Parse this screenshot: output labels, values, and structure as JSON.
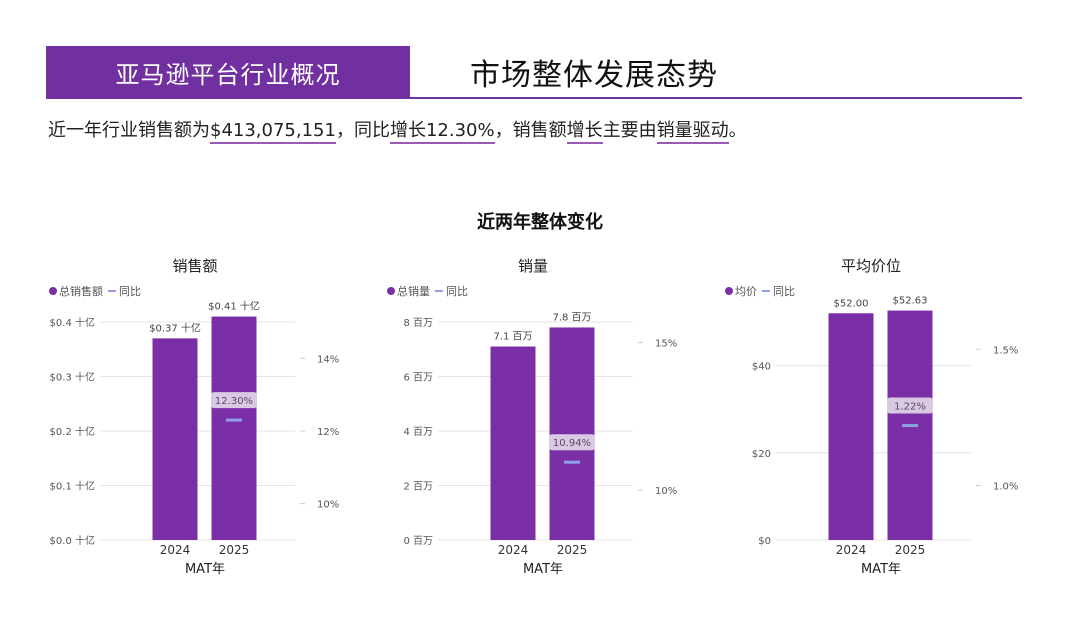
{
  "header": {
    "section_label": "亚马逊平台行业概况",
    "page_title": "市场整体发展态势"
  },
  "summary": {
    "prefix": "近一年行业销售额为",
    "sales_value": "$413,075,151",
    "mid1": "，同比",
    "growth_word": "增长",
    "growth_value": "12.30%",
    "mid2": "，销售额",
    "growth_word2": "增长",
    "mid3": "主要由",
    "driver": "销量驱动",
    "suffix": "。"
  },
  "section_title": "近两年整体变化",
  "colors": {
    "bar": "#7b2fa6",
    "yoy_marker": "#8fa0e6",
    "label_bg": "#d9c9e3",
    "accent": "#7030a0"
  },
  "chart_data": [
    {
      "type": "bar",
      "title": "销售额",
      "legend": [
        "总销售额",
        "同比"
      ],
      "xlabel": "MAT年",
      "categories": [
        "2024",
        "2025"
      ],
      "values": [
        0.37,
        0.41
      ],
      "value_labels": [
        "$0.37 十亿",
        "$0.41 十亿"
      ],
      "y_ticks": [
        "$0.0 十亿",
        "$0.1 十亿",
        "$0.2 十亿",
        "$0.3 十亿",
        "$0.4 十亿"
      ],
      "y_tick_values": [
        0,
        0.1,
        0.2,
        0.3,
        0.4
      ],
      "ylim": [
        0,
        0.4
      ],
      "y2_ticks": [
        "10%",
        "12%",
        "14%"
      ],
      "y2_tick_values": [
        10,
        12,
        14
      ],
      "y2lim": [
        9,
        15
      ],
      "yoy": {
        "category": "2025",
        "value": 12.3,
        "label": "12.30%"
      }
    },
    {
      "type": "bar",
      "title": "销量",
      "legend": [
        "总销量",
        "同比"
      ],
      "xlabel": "MAT年",
      "categories": [
        "2024",
        "2025"
      ],
      "values": [
        7.1,
        7.8
      ],
      "value_labels": [
        "7.1 百万",
        "7.8 百万"
      ],
      "y_ticks": [
        "0 百万",
        "2 百万",
        "4 百万",
        "6 百万",
        "8 百万"
      ],
      "y_tick_values": [
        0,
        2,
        4,
        6,
        8
      ],
      "ylim": [
        0,
        8
      ],
      "y2_ticks": [
        "10%",
        "15%"
      ],
      "y2_tick_values": [
        10,
        15
      ],
      "y2lim": [
        8.3,
        15.7
      ],
      "yoy": {
        "category": "2025",
        "value": 10.94,
        "label": "10.94%"
      }
    },
    {
      "type": "bar",
      "title": "平均价位",
      "legend": [
        "均价",
        "同比"
      ],
      "xlabel": "MAT年",
      "categories": [
        "2024",
        "2025"
      ],
      "values": [
        52.0,
        52.63
      ],
      "value_labels": [
        "$52.00",
        "$52.63"
      ],
      "y_ticks": [
        "$0",
        "$20",
        "$40"
      ],
      "y_tick_values": [
        0,
        20,
        40
      ],
      "ylim": [
        0,
        50
      ],
      "y2_ticks": [
        "1.0%",
        "1.5%"
      ],
      "y2_tick_values": [
        1.0,
        1.5
      ],
      "y2lim": [
        0.8,
        1.6
      ],
      "yoy": {
        "category": "2025",
        "value": 1.22,
        "label": "1.22%"
      }
    }
  ]
}
